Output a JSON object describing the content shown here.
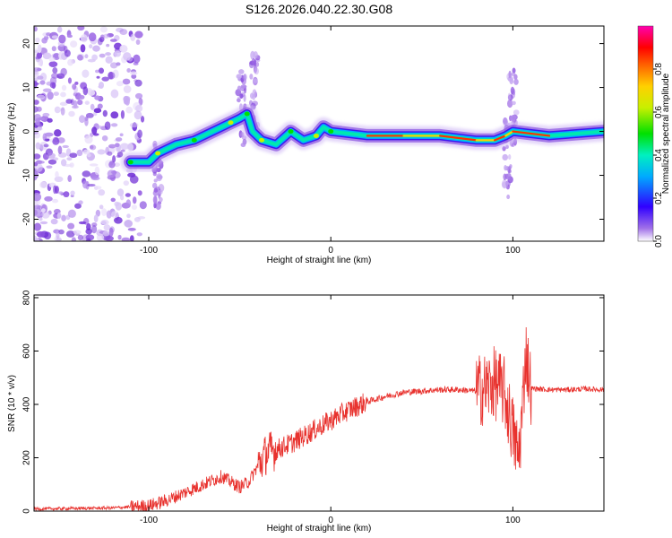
{
  "chart_data": [
    {
      "type": "heatmap",
      "title": "S126.2026.040.22.30.G08",
      "xlabel": "Height of straight line (km)",
      "ylabel": "Frequency (Hz)",
      "xlim": [
        -163,
        150
      ],
      "ylim": [
        -25,
        24
      ],
      "xticks": [
        -100,
        0,
        100
      ],
      "yticks": [
        20,
        10,
        0,
        -10,
        -20
      ],
      "colorbar": {
        "label": "Normalized spectral amplitude",
        "range": [
          0,
          1
        ],
        "ticks": [
          0.0,
          0.2,
          0.4,
          0.6,
          0.8
        ]
      },
      "ridge": [
        {
          "x": -110,
          "y": -7
        },
        {
          "x": -100,
          "y": -7
        },
        {
          "x": -95,
          "y": -5
        },
        {
          "x": -85,
          "y": -3
        },
        {
          "x": -75,
          "y": -2
        },
        {
          "x": -65,
          "y": 0
        },
        {
          "x": -55,
          "y": 2
        },
        {
          "x": -50,
          "y": 3
        },
        {
          "x": -46,
          "y": 4
        },
        {
          "x": -43,
          "y": 0
        },
        {
          "x": -38,
          "y": -2
        },
        {
          "x": -30,
          "y": -3
        },
        {
          "x": -22,
          "y": 0
        },
        {
          "x": -15,
          "y": -2
        },
        {
          "x": -8,
          "y": -1
        },
        {
          "x": -4,
          "y": 1
        },
        {
          "x": 0,
          "y": 0
        },
        {
          "x": 20,
          "y": -1
        },
        {
          "x": 40,
          "y": -1
        },
        {
          "x": 60,
          "y": -1
        },
        {
          "x": 80,
          "y": -2
        },
        {
          "x": 90,
          "y": -2
        },
        {
          "x": 96,
          "y": -1
        },
        {
          "x": 100,
          "y": 0
        },
        {
          "x": 120,
          "y": -1
        },
        {
          "x": 150,
          "y": 0
        }
      ]
    },
    {
      "type": "line",
      "title": "",
      "xlabel": "Height of straight line (km)",
      "ylabel": "SNR (10 * v/v)",
      "xlim": [
        -163,
        150
      ],
      "ylim": [
        0,
        810
      ],
      "xticks": [
        -100,
        0,
        100
      ],
      "yticks": [
        0,
        200,
        400,
        600,
        800
      ],
      "series": [
        {
          "name": "SNR",
          "color": "#e8322e",
          "x": [
            -163,
            -140,
            -120,
            -100,
            -90,
            -80,
            -70,
            -60,
            -50,
            -45,
            -40,
            -35,
            -30,
            -20,
            -10,
            0,
            10,
            20,
            30,
            40,
            50,
            60,
            70,
            80,
            85,
            90,
            95,
            100,
            103,
            105,
            107,
            110,
            120,
            130,
            140,
            150
          ],
          "y": [
            8,
            10,
            12,
            20,
            40,
            70,
            100,
            130,
            90,
            110,
            170,
            220,
            230,
            260,
            300,
            340,
            380,
            410,
            430,
            445,
            450,
            455,
            455,
            450,
            460,
            480,
            450,
            300,
            200,
            350,
            600,
            460,
            455,
            455,
            458,
            455
          ]
        }
      ]
    }
  ]
}
